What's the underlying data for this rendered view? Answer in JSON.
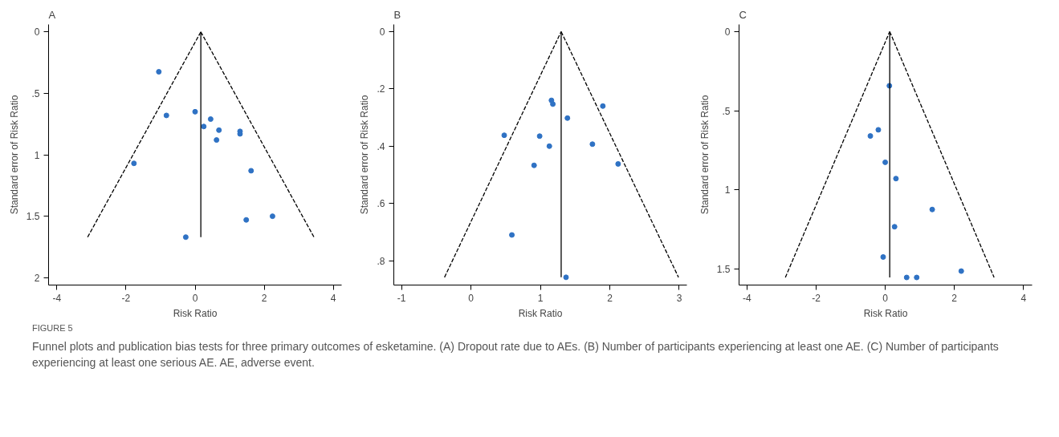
{
  "chart_data": [
    {
      "type": "scatter",
      "title": "A",
      "xlabel": "Risk Ratio",
      "ylabel": "Standard error of Risk Ratio",
      "xlim": [
        -4.24,
        4.24
      ],
      "ylim": [
        2.06,
        -0.06
      ],
      "xticks": [
        -4,
        -2,
        0,
        2,
        4
      ],
      "yticks": [
        0,
        {
          "value": 0.5,
          "label": ".5"
        },
        1,
        1.5,
        2
      ],
      "grid": false,
      "series": [
        {
          "marker": "circle",
          "color": "#2f72c4",
          "x": [
            -1.05,
            -0.83,
            0,
            0.45,
            0.25,
            0.69,
            1.3,
            1.3,
            0.62,
            -1.77,
            1.62,
            2.24,
            1.48,
            -0.27
          ],
          "values": [
            0.325,
            0.68,
            0.65,
            0.71,
            0.77,
            0.8,
            0.81,
            0.83,
            0.88,
            1.07,
            1.13,
            1.5,
            1.53,
            1.67
          ]
        },
        {
          "type": "line",
          "color": "#000000",
          "line_style": "dashed",
          "x": [
            -3.11,
            0.166
          ],
          "values": [
            1.67,
            0
          ]
        },
        {
          "type": "line",
          "color": "#000000",
          "line_style": "dashed",
          "x": [
            0.166,
            3.44
          ],
          "values": [
            0,
            1.67
          ]
        },
        {
          "type": "line",
          "color": "#000000",
          "line_style": "solid",
          "x": [
            0.166,
            0.166
          ],
          "values": [
            0,
            1.67
          ]
        }
      ],
      "annotations": [
        "FIGURE 5",
        "Funnel plots and publication bias tests for three primary outcomes of esketamine. (A) Dropout rate due to AEs. (B) Number of participants experiencing at least one AE. (C) Number of participants experiencing at least one serious AE. AE, adverse event."
      ]
    },
    {
      "type": "scatter",
      "title": "B",
      "xlabel": "Risk Ratio",
      "ylabel": "Standard error of Risk Ratio",
      "xlim": [
        -1.11,
        3.11
      ],
      "ylim": [
        0.885,
        -0.025
      ],
      "xticks": [
        -1,
        0,
        1,
        2,
        3
      ],
      "yticks": [
        0,
        {
          "value": 0.2,
          "label": ".2"
        },
        {
          "value": 0.4,
          "label": ".4"
        },
        {
          "value": 0.6,
          "label": ".6"
        },
        {
          "value": 0.8,
          "label": ".8"
        }
      ],
      "grid": false,
      "series": [
        {
          "marker": "circle",
          "color": "#2f72c4",
          "x": [
            1.16,
            1.18,
            1.9,
            1.39,
            0.48,
            0.99,
            1.13,
            1.75,
            0.91,
            2.12,
            0.59,
            1.37
          ],
          "values": [
            0.24,
            0.253,
            0.26,
            0.302,
            0.362,
            0.365,
            0.4,
            0.393,
            0.467,
            0.462,
            0.71,
            0.858
          ]
        },
        {
          "type": "line",
          "color": "#000000",
          "line_style": "dashed",
          "x": [
            -0.38,
            1.3
          ],
          "values": [
            0.858,
            0
          ]
        },
        {
          "type": "line",
          "color": "#000000",
          "line_style": "dashed",
          "x": [
            1.3,
            2.99
          ],
          "values": [
            0,
            0.858
          ]
        },
        {
          "type": "line",
          "color": "#000000",
          "line_style": "solid",
          "x": [
            1.3,
            1.3
          ],
          "values": [
            0,
            0.858
          ]
        }
      ]
    },
    {
      "type": "scatter",
      "title": "C",
      "xlabel": "Risk Ratio",
      "ylabel": "Standard error of Risk Ratio",
      "xlim": [
        -4.23,
        4.25
      ],
      "ylim": [
        1.6,
        -0.045
      ],
      "xticks": [
        -4,
        -2,
        0,
        2,
        4
      ],
      "yticks": [
        0,
        {
          "value": 0.5,
          "label": ".5"
        },
        1,
        1.5
      ],
      "grid": false,
      "series": [
        {
          "marker": "circle",
          "color": "#2f72c4",
          "x": [
            0.12,
            -0.2,
            -0.43,
            0,
            0.31,
            1.36,
            0.27,
            -0.06,
            2.2,
            0.62,
            0.91
          ],
          "values": [
            0.342,
            0.62,
            0.659,
            0.825,
            0.928,
            1.123,
            1.232,
            1.423,
            1.512,
            1.552,
            1.552
          ]
        },
        {
          "type": "line",
          "color": "#000000",
          "line_style": "dashed",
          "x": [
            -2.89,
            0.13
          ],
          "values": [
            1.552,
            0
          ]
        },
        {
          "type": "line",
          "color": "#000000",
          "line_style": "dashed",
          "x": [
            0.13,
            3.15
          ],
          "values": [
            0,
            1.552
          ]
        },
        {
          "type": "line",
          "color": "#000000",
          "line_style": "solid",
          "x": [
            0.13,
            0.13
          ],
          "values": [
            0,
            1.552
          ]
        }
      ]
    }
  ]
}
